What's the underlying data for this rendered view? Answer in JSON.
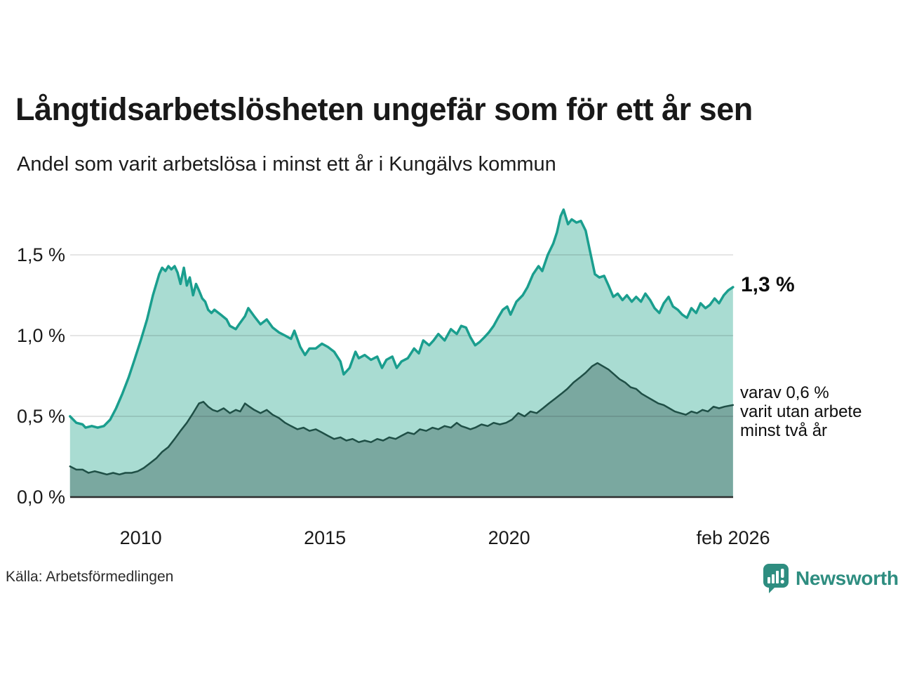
{
  "header": {
    "title": "Långtidsarbetslösheten ungefär som för ett år sen",
    "subtitle": "Andel som varit arbetslösa i minst ett år i Kungälvs kommun"
  },
  "footer": {
    "source": "Källa: Arbetsförmedlingen",
    "brand": "Newsworthy"
  },
  "colors": {
    "line_total": "#1a9e8e",
    "fill_total": "#a9dcd2",
    "line_two_year": "#1f4f46",
    "fill_two_year": "#7aa8a0",
    "grid": "rgba(0,0,0,0.10)",
    "baseline": "#2d2d2d",
    "brand": "#2e8d80"
  },
  "chart_data": {
    "type": "area",
    "title": "Långtidsarbetslösheten ungefär som för ett år sen",
    "subtitle": "Andel som varit arbetslösa i minst ett år i Kungälvs kommun",
    "xlabel": "",
    "ylabel": "",
    "xlim": [
      2008.083,
      2026.083
    ],
    "ylim": [
      0,
      1.5
    ],
    "grid": "horizontal",
    "yticks": [
      {
        "v": 0.0,
        "label": "0,0 %"
      },
      {
        "v": 0.5,
        "label": "0,5 %"
      },
      {
        "v": 1.0,
        "label": "1,0 %"
      },
      {
        "v": 1.5,
        "label": "1,5 %"
      }
    ],
    "xticks": [
      {
        "v": 2010.0,
        "label": "2010"
      },
      {
        "v": 2015.0,
        "label": "2015"
      },
      {
        "v": 2020.0,
        "label": "2020"
      },
      {
        "v": 2026.083,
        "label": "feb 2026"
      }
    ],
    "annotations": [
      {
        "id": "latest-total",
        "text": "1,3 %"
      },
      {
        "id": "latest-two-year",
        "text": "varav 0,6 %\nvarit utan arbete\nminst två år"
      }
    ],
    "series": [
      {
        "name": "Andel som varit arbetslösa i minst ett år",
        "unit": "%",
        "latest_label": "1,3 %",
        "points": [
          [
            2008.08,
            0.5
          ],
          [
            2008.25,
            0.46
          ],
          [
            2008.42,
            0.45
          ],
          [
            2008.5,
            0.43
          ],
          [
            2008.67,
            0.44
          ],
          [
            2008.83,
            0.43
          ],
          [
            2009.0,
            0.44
          ],
          [
            2009.17,
            0.48
          ],
          [
            2009.33,
            0.55
          ],
          [
            2009.5,
            0.64
          ],
          [
            2009.67,
            0.74
          ],
          [
            2009.83,
            0.85
          ],
          [
            2010.0,
            0.97
          ],
          [
            2010.17,
            1.1
          ],
          [
            2010.33,
            1.25
          ],
          [
            2010.5,
            1.38
          ],
          [
            2010.58,
            1.42
          ],
          [
            2010.67,
            1.4
          ],
          [
            2010.75,
            1.43
          ],
          [
            2010.83,
            1.41
          ],
          [
            2010.92,
            1.43
          ],
          [
            2011.0,
            1.39
          ],
          [
            2011.08,
            1.32
          ],
          [
            2011.17,
            1.42
          ],
          [
            2011.25,
            1.31
          ],
          [
            2011.33,
            1.36
          ],
          [
            2011.42,
            1.25
          ],
          [
            2011.5,
            1.32
          ],
          [
            2011.58,
            1.28
          ],
          [
            2011.67,
            1.23
          ],
          [
            2011.75,
            1.21
          ],
          [
            2011.83,
            1.16
          ],
          [
            2011.92,
            1.14
          ],
          [
            2012.0,
            1.16
          ],
          [
            2012.17,
            1.13
          ],
          [
            2012.33,
            1.1
          ],
          [
            2012.42,
            1.06
          ],
          [
            2012.58,
            1.04
          ],
          [
            2012.67,
            1.07
          ],
          [
            2012.83,
            1.12
          ],
          [
            2012.92,
            1.17
          ],
          [
            2013.08,
            1.12
          ],
          [
            2013.25,
            1.07
          ],
          [
            2013.42,
            1.1
          ],
          [
            2013.58,
            1.05
          ],
          [
            2013.75,
            1.02
          ],
          [
            2013.92,
            1.0
          ],
          [
            2014.08,
            0.98
          ],
          [
            2014.17,
            1.03
          ],
          [
            2014.33,
            0.93
          ],
          [
            2014.46,
            0.88
          ],
          [
            2014.58,
            0.92
          ],
          [
            2014.75,
            0.92
          ],
          [
            2014.92,
            0.95
          ],
          [
            2015.08,
            0.93
          ],
          [
            2015.25,
            0.9
          ],
          [
            2015.42,
            0.84
          ],
          [
            2015.51,
            0.76
          ],
          [
            2015.67,
            0.8
          ],
          [
            2015.83,
            0.9
          ],
          [
            2015.92,
            0.86
          ],
          [
            2016.08,
            0.88
          ],
          [
            2016.25,
            0.85
          ],
          [
            2016.42,
            0.87
          ],
          [
            2016.55,
            0.8
          ],
          [
            2016.67,
            0.85
          ],
          [
            2016.83,
            0.87
          ],
          [
            2016.95,
            0.8
          ],
          [
            2017.08,
            0.84
          ],
          [
            2017.25,
            0.86
          ],
          [
            2017.42,
            0.92
          ],
          [
            2017.55,
            0.89
          ],
          [
            2017.67,
            0.97
          ],
          [
            2017.83,
            0.94
          ],
          [
            2017.95,
            0.97
          ],
          [
            2018.08,
            1.01
          ],
          [
            2018.25,
            0.97
          ],
          [
            2018.42,
            1.04
          ],
          [
            2018.58,
            1.01
          ],
          [
            2018.7,
            1.06
          ],
          [
            2018.83,
            1.05
          ],
          [
            2018.95,
            0.99
          ],
          [
            2019.08,
            0.94
          ],
          [
            2019.2,
            0.96
          ],
          [
            2019.33,
            0.99
          ],
          [
            2019.45,
            1.02
          ],
          [
            2019.58,
            1.06
          ],
          [
            2019.7,
            1.11
          ],
          [
            2019.83,
            1.16
          ],
          [
            2019.95,
            1.18
          ],
          [
            2020.04,
            1.13
          ],
          [
            2020.2,
            1.21
          ],
          [
            2020.37,
            1.25
          ],
          [
            2020.5,
            1.3
          ],
          [
            2020.65,
            1.38
          ],
          [
            2020.8,
            1.43
          ],
          [
            2020.9,
            1.4
          ],
          [
            2021.05,
            1.5
          ],
          [
            2021.2,
            1.57
          ],
          [
            2021.3,
            1.64
          ],
          [
            2021.4,
            1.74
          ],
          [
            2021.48,
            1.78
          ],
          [
            2021.6,
            1.69
          ],
          [
            2021.7,
            1.72
          ],
          [
            2021.83,
            1.7
          ],
          [
            2021.95,
            1.71
          ],
          [
            2022.08,
            1.65
          ],
          [
            2022.2,
            1.52
          ],
          [
            2022.33,
            1.38
          ],
          [
            2022.45,
            1.36
          ],
          [
            2022.58,
            1.37
          ],
          [
            2022.7,
            1.31
          ],
          [
            2022.83,
            1.24
          ],
          [
            2022.95,
            1.26
          ],
          [
            2023.08,
            1.22
          ],
          [
            2023.2,
            1.25
          ],
          [
            2023.33,
            1.21
          ],
          [
            2023.45,
            1.24
          ],
          [
            2023.58,
            1.21
          ],
          [
            2023.7,
            1.26
          ],
          [
            2023.83,
            1.22
          ],
          [
            2023.95,
            1.17
          ],
          [
            2024.08,
            1.14
          ],
          [
            2024.2,
            1.2
          ],
          [
            2024.33,
            1.24
          ],
          [
            2024.45,
            1.18
          ],
          [
            2024.58,
            1.16
          ],
          [
            2024.7,
            1.13
          ],
          [
            2024.83,
            1.11
          ],
          [
            2024.95,
            1.17
          ],
          [
            2025.08,
            1.14
          ],
          [
            2025.2,
            1.2
          ],
          [
            2025.33,
            1.17
          ],
          [
            2025.45,
            1.19
          ],
          [
            2025.58,
            1.23
          ],
          [
            2025.7,
            1.2
          ],
          [
            2025.83,
            1.25
          ],
          [
            2025.95,
            1.28
          ],
          [
            2026.08,
            1.3
          ]
        ]
      },
      {
        "name": "varav varit utan arbete minst två år",
        "unit": "%",
        "latest_label": "varav 0,6 % varit utan arbete minst två år",
        "points": [
          [
            2008.08,
            0.19
          ],
          [
            2008.25,
            0.17
          ],
          [
            2008.42,
            0.17
          ],
          [
            2008.58,
            0.15
          ],
          [
            2008.75,
            0.16
          ],
          [
            2008.92,
            0.15
          ],
          [
            2009.08,
            0.14
          ],
          [
            2009.25,
            0.15
          ],
          [
            2009.42,
            0.14
          ],
          [
            2009.58,
            0.15
          ],
          [
            2009.75,
            0.15
          ],
          [
            2009.92,
            0.16
          ],
          [
            2010.08,
            0.18
          ],
          [
            2010.25,
            0.21
          ],
          [
            2010.42,
            0.24
          ],
          [
            2010.58,
            0.28
          ],
          [
            2010.75,
            0.31
          ],
          [
            2010.92,
            0.36
          ],
          [
            2011.08,
            0.41
          ],
          [
            2011.25,
            0.46
          ],
          [
            2011.42,
            0.52
          ],
          [
            2011.58,
            0.58
          ],
          [
            2011.7,
            0.59
          ],
          [
            2011.83,
            0.56
          ],
          [
            2011.95,
            0.54
          ],
          [
            2012.08,
            0.53
          ],
          [
            2012.25,
            0.55
          ],
          [
            2012.42,
            0.52
          ],
          [
            2012.58,
            0.54
          ],
          [
            2012.7,
            0.53
          ],
          [
            2012.83,
            0.58
          ],
          [
            2012.95,
            0.56
          ],
          [
            2013.08,
            0.54
          ],
          [
            2013.25,
            0.52
          ],
          [
            2013.42,
            0.54
          ],
          [
            2013.58,
            0.51
          ],
          [
            2013.75,
            0.49
          ],
          [
            2013.92,
            0.46
          ],
          [
            2014.08,
            0.44
          ],
          [
            2014.25,
            0.42
          ],
          [
            2014.42,
            0.43
          ],
          [
            2014.58,
            0.41
          ],
          [
            2014.75,
            0.42
          ],
          [
            2014.92,
            0.4
          ],
          [
            2015.08,
            0.38
          ],
          [
            2015.25,
            0.36
          ],
          [
            2015.42,
            0.37
          ],
          [
            2015.58,
            0.35
          ],
          [
            2015.75,
            0.36
          ],
          [
            2015.92,
            0.34
          ],
          [
            2016.08,
            0.35
          ],
          [
            2016.25,
            0.34
          ],
          [
            2016.42,
            0.36
          ],
          [
            2016.58,
            0.35
          ],
          [
            2016.75,
            0.37
          ],
          [
            2016.92,
            0.36
          ],
          [
            2017.08,
            0.38
          ],
          [
            2017.25,
            0.4
          ],
          [
            2017.42,
            0.39
          ],
          [
            2017.58,
            0.42
          ],
          [
            2017.75,
            0.41
          ],
          [
            2017.92,
            0.43
          ],
          [
            2018.08,
            0.42
          ],
          [
            2018.25,
            0.44
          ],
          [
            2018.42,
            0.43
          ],
          [
            2018.58,
            0.46
          ],
          [
            2018.7,
            0.44
          ],
          [
            2018.83,
            0.43
          ],
          [
            2018.95,
            0.42
          ],
          [
            2019.08,
            0.43
          ],
          [
            2019.25,
            0.45
          ],
          [
            2019.42,
            0.44
          ],
          [
            2019.58,
            0.46
          ],
          [
            2019.75,
            0.45
          ],
          [
            2019.92,
            0.46
          ],
          [
            2020.08,
            0.48
          ],
          [
            2020.25,
            0.52
          ],
          [
            2020.42,
            0.5
          ],
          [
            2020.58,
            0.53
          ],
          [
            2020.75,
            0.52
          ],
          [
            2020.92,
            0.55
          ],
          [
            2021.08,
            0.58
          ],
          [
            2021.25,
            0.61
          ],
          [
            2021.42,
            0.64
          ],
          [
            2021.58,
            0.67
          ],
          [
            2021.75,
            0.71
          ],
          [
            2021.92,
            0.74
          ],
          [
            2022.08,
            0.77
          ],
          [
            2022.25,
            0.81
          ],
          [
            2022.4,
            0.83
          ],
          [
            2022.55,
            0.81
          ],
          [
            2022.7,
            0.79
          ],
          [
            2022.85,
            0.76
          ],
          [
            2023.0,
            0.73
          ],
          [
            2023.15,
            0.71
          ],
          [
            2023.3,
            0.68
          ],
          [
            2023.45,
            0.67
          ],
          [
            2023.6,
            0.64
          ],
          [
            2023.75,
            0.62
          ],
          [
            2023.9,
            0.6
          ],
          [
            2024.05,
            0.58
          ],
          [
            2024.2,
            0.57
          ],
          [
            2024.35,
            0.55
          ],
          [
            2024.5,
            0.53
          ],
          [
            2024.65,
            0.52
          ],
          [
            2024.8,
            0.51
          ],
          [
            2024.95,
            0.53
          ],
          [
            2025.1,
            0.52
          ],
          [
            2025.25,
            0.54
          ],
          [
            2025.4,
            0.53
          ],
          [
            2025.55,
            0.56
          ],
          [
            2025.7,
            0.55
          ],
          [
            2025.85,
            0.56
          ],
          [
            2026.08,
            0.57
          ]
        ]
      }
    ]
  }
}
